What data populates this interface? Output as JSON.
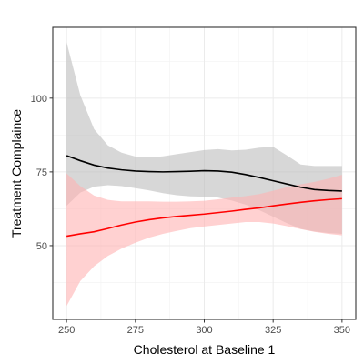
{
  "chart_data": {
    "type": "line",
    "title": "",
    "xlabel": "Cholesterol at Baseline 1",
    "ylabel": "Treatment Complaince",
    "xlim": [
      245,
      355
    ],
    "ylim": [
      25,
      124
    ],
    "x_ticks": [
      250,
      275,
      300,
      325,
      350
    ],
    "y_ticks": [
      50,
      75,
      100
    ],
    "x_tick_labels": [
      "250",
      "275",
      "300",
      "325",
      "350"
    ],
    "y_tick_labels": [
      "50",
      "75",
      "100"
    ],
    "grid": true,
    "legend": "none",
    "series": [
      {
        "color": "#000000",
        "ribbon_color": "#bdbdbd",
        "x": [
          250,
          255,
          260,
          265,
          270,
          275,
          280,
          285,
          290,
          295,
          300,
          305,
          310,
          315,
          320,
          325,
          330,
          335,
          340,
          345,
          350
        ],
        "y": [
          80.5,
          78.8,
          77.3,
          76.3,
          75.7,
          75.3,
          75.1,
          75.0,
          75.1,
          75.2,
          75.4,
          75.3,
          74.9,
          74.1,
          73.1,
          72.0,
          70.9,
          69.8,
          69.0,
          68.7,
          68.5
        ],
        "lower": [
          63.5,
          68.0,
          70.0,
          70.5,
          70.2,
          69.5,
          68.7,
          67.8,
          67.1,
          66.7,
          66.6,
          66.3,
          65.3,
          63.9,
          62.0,
          59.8,
          57.6,
          55.7,
          54.8,
          54.3,
          54.0
        ],
        "upper": [
          119.0,
          101.0,
          89.5,
          84.0,
          81.5,
          80.2,
          79.9,
          80.3,
          81.0,
          81.7,
          82.4,
          82.7,
          82.3,
          82.5,
          83.2,
          83.5,
          80.6,
          77.5,
          77.0,
          77.0,
          77.0
        ]
      },
      {
        "color": "#ff0000",
        "ribbon_color": "#ffb3b3",
        "x": [
          250,
          255,
          260,
          265,
          270,
          275,
          280,
          285,
          290,
          295,
          300,
          305,
          310,
          315,
          320,
          325,
          330,
          335,
          340,
          345,
          350
        ],
        "y": [
          53.2,
          54.0,
          54.7,
          55.8,
          57.0,
          58.0,
          58.8,
          59.4,
          59.9,
          60.3,
          60.7,
          61.2,
          61.7,
          62.3,
          62.8,
          63.5,
          64.1,
          64.7,
          65.2,
          65.6,
          65.9
        ],
        "lower": [
          29.5,
          38.0,
          43.0,
          46.5,
          49.0,
          51.0,
          52.7,
          54.0,
          55.0,
          55.9,
          56.5,
          57.0,
          57.5,
          58.0,
          58.0,
          57.5,
          56.6,
          55.6,
          54.7,
          54.0,
          53.5
        ],
        "upper": [
          74.5,
          70.2,
          67.0,
          65.5,
          65.0,
          65.0,
          65.0,
          64.9,
          64.9,
          65.0,
          65.2,
          65.7,
          66.3,
          66.8,
          67.5,
          68.6,
          69.8,
          70.8,
          71.6,
          72.7,
          74.0
        ]
      }
    ]
  }
}
